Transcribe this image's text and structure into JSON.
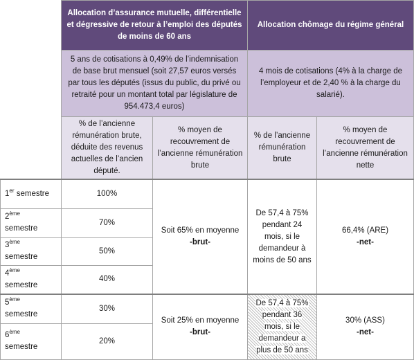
{
  "header": {
    "col_a": "Allocation d’assurance  mutuelle, différentielle et dégressive de retour à l’emploi des députés de moins de 60 ans",
    "col_b": "Allocation chômage du régime général"
  },
  "contributions": {
    "col_a": "5 ans de cotisations à 0,49% de l’indemnisation de base brut mensuel (soit  27,57 euros versés par tous les députés (issus du public, du privé ou retraité pour un montant total par législature de 954.473,4 euros)",
    "col_b": "4 mois de cotisations (4% à la charge de l’employeur et de 2,40 % à la charge du salarié)."
  },
  "subheaders": [
    "% de l’ancienne rémunération brute, déduite des revenus actuelles de l’ancien député.",
    "% moyen de recouvrement de l’ancienne rémunération brute",
    "% de l’ancienne rémunération brute",
    "% moyen de recouvrement de l’ancienne rémunération nette"
  ],
  "rows": [
    {
      "ordinal": "1",
      "suffix": "er",
      "label": "semestre",
      "rate": "100%"
    },
    {
      "ordinal": "2",
      "suffix": "ème",
      "label": "semestre",
      "rate": "70%"
    },
    {
      "ordinal": "3",
      "suffix": "ème",
      "label": "semestre",
      "rate": "50%"
    },
    {
      "ordinal": "4",
      "suffix": "ème",
      "label": "semestre",
      "rate": "40%"
    },
    {
      "ordinal": "5",
      "suffix": "ème",
      "label": "semestre",
      "rate": "30%"
    },
    {
      "ordinal": "6",
      "suffix": "ème",
      "label": "semestre",
      "rate": "20%"
    }
  ],
  "groups": [
    {
      "average": "Soit 65% en moyenne",
      "average_basis": "-brut-",
      "general": "De 57,4 à 75% pendant 24 mois, si le demandeur à moins de 50 ans",
      "net": "66,4% (ARE)",
      "net_basis": "-net-"
    },
    {
      "average": "Soit 25% en moyenne",
      "average_basis": "-brut-",
      "general": "De 57,4 à 75% pendant 36 mois, si le demandeur a plus de 50 ans",
      "net": "30% (ASS)",
      "net_basis": "-net-"
    }
  ]
}
